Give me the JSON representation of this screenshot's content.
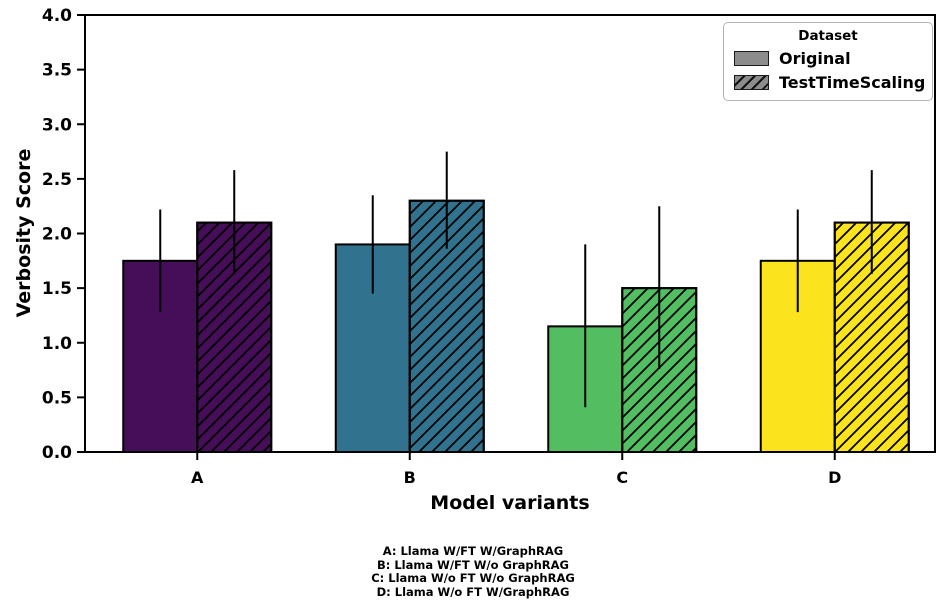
{
  "chart_data": {
    "type": "bar",
    "title": "",
    "xlabel": "Model variants",
    "ylabel": "Verbosity Score",
    "categories": [
      "A",
      "B",
      "C",
      "D"
    ],
    "series": [
      {
        "name": "Original",
        "hatch": false,
        "values": [
          1.75,
          1.9,
          1.15,
          1.75
        ],
        "err_low": [
          1.28,
          1.45,
          0.41,
          1.28
        ],
        "err_high": [
          2.22,
          2.35,
          1.9,
          2.22
        ]
      },
      {
        "name": "TestTimeScaling",
        "hatch": true,
        "values": [
          2.1,
          2.3,
          1.5,
          2.1
        ],
        "err_low": [
          1.63,
          1.86,
          0.76,
          1.63
        ],
        "err_high": [
          2.58,
          2.75,
          2.25,
          2.58
        ]
      }
    ],
    "category_colors": [
      "#460D58",
      "#31738E",
      "#52BE61",
      "#FBE41E"
    ],
    "bar_edge_color": "#000000",
    "error_bar_color": "#000000",
    "ylim": [
      0,
      4
    ],
    "yticks": [
      "0.0",
      "0.5",
      "1.0",
      "1.5",
      "2.0",
      "2.5",
      "3.0",
      "3.5",
      "4.0"
    ],
    "grid": false,
    "legend": {
      "title": "Dataset",
      "position": "upper right",
      "entries": [
        "Original",
        "TestTimeScaling"
      ],
      "swatch_color": "#8c8c8c"
    }
  },
  "footnotes": [
    "A: Llama W/FT W/GraphRAG",
    "B: Llama W/FT W/o GraphRAG",
    "C: Llama W/o FT W/o GraphRAG",
    "D: Llama W/o FT W/GraphRAG"
  ]
}
